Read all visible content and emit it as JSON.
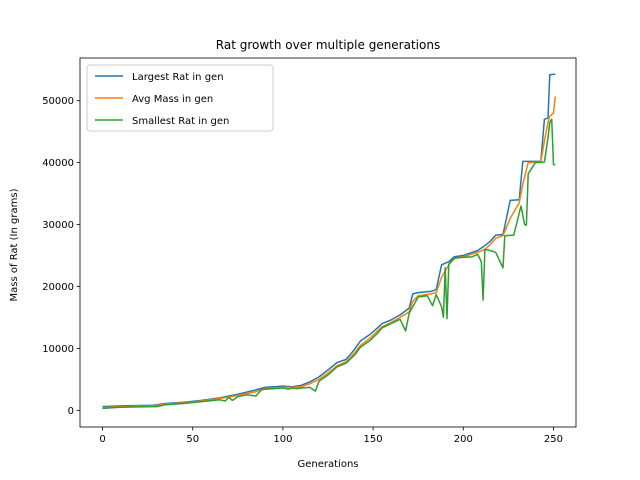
{
  "chart_data": {
    "type": "line",
    "title": "Rat growth over multiple generations",
    "xlabel": "Generations",
    "ylabel": "Mass of Rat (In grams)",
    "xlim": [
      -12.5,
      262.5
    ],
    "ylim": [
      -2700,
      56900
    ],
    "xticks": [
      0,
      50,
      100,
      150,
      200,
      250
    ],
    "yticks": [
      0,
      10000,
      20000,
      30000,
      40000,
      50000
    ],
    "legend_position": "top-left",
    "series": [
      {
        "name": "Largest Rat in gen",
        "color": "#1f77b4",
        "points": [
          [
            0,
            600
          ],
          [
            10,
            700
          ],
          [
            28,
            800
          ],
          [
            35,
            1100
          ],
          [
            45,
            1300
          ],
          [
            55,
            1600
          ],
          [
            65,
            2000
          ],
          [
            75,
            2600
          ],
          [
            85,
            3300
          ],
          [
            90,
            3700
          ],
          [
            100,
            3900
          ],
          [
            105,
            3800
          ],
          [
            110,
            4000
          ],
          [
            115,
            4600
          ],
          [
            120,
            5400
          ],
          [
            125,
            6500
          ],
          [
            130,
            7700
          ],
          [
            135,
            8200
          ],
          [
            138,
            9200
          ],
          [
            140,
            10000
          ],
          [
            143,
            11200
          ],
          [
            148,
            12200
          ],
          [
            152,
            13200
          ],
          [
            155,
            14000
          ],
          [
            160,
            14600
          ],
          [
            165,
            15400
          ],
          [
            170,
            16500
          ],
          [
            172,
            18800
          ],
          [
            175,
            19000
          ],
          [
            182,
            19200
          ],
          [
            185,
            19500
          ],
          [
            188,
            23500
          ],
          [
            192,
            24000
          ],
          [
            195,
            24800
          ],
          [
            200,
            25000
          ],
          [
            208,
            25800
          ],
          [
            212,
            26600
          ],
          [
            215,
            27300
          ],
          [
            218,
            28300
          ],
          [
            222,
            28400
          ],
          [
            226,
            33900
          ],
          [
            231,
            34000
          ],
          [
            233,
            40200
          ],
          [
            243,
            40200
          ],
          [
            245,
            47000
          ],
          [
            247,
            47200
          ],
          [
            248,
            54200
          ],
          [
            251,
            54300
          ]
        ]
      },
      {
        "name": "Avg Mass in gen",
        "color": "#ff7f0e",
        "points": [
          [
            0,
            400
          ],
          [
            10,
            600
          ],
          [
            28,
            700
          ],
          [
            35,
            1000
          ],
          [
            45,
            1200
          ],
          [
            55,
            1500
          ],
          [
            65,
            1900
          ],
          [
            75,
            2400
          ],
          [
            85,
            3000
          ],
          [
            90,
            3500
          ],
          [
            100,
            3700
          ],
          [
            105,
            3700
          ],
          [
            110,
            3800
          ],
          [
            115,
            4300
          ],
          [
            120,
            5000
          ],
          [
            125,
            6000
          ],
          [
            130,
            7200
          ],
          [
            135,
            7800
          ],
          [
            138,
            8700
          ],
          [
            140,
            9400
          ],
          [
            143,
            10500
          ],
          [
            148,
            11600
          ],
          [
            152,
            12700
          ],
          [
            155,
            13500
          ],
          [
            160,
            14200
          ],
          [
            165,
            15000
          ],
          [
            170,
            15900
          ],
          [
            172,
            17600
          ],
          [
            175,
            18500
          ],
          [
            182,
            18800
          ],
          [
            185,
            19000
          ],
          [
            188,
            21500
          ],
          [
            192,
            23500
          ],
          [
            195,
            24500
          ],
          [
            200,
            24800
          ],
          [
            208,
            25500
          ],
          [
            212,
            26000
          ],
          [
            215,
            26800
          ],
          [
            218,
            27800
          ],
          [
            222,
            28200
          ],
          [
            226,
            31000
          ],
          [
            231,
            33500
          ],
          [
            233,
            36500
          ],
          [
            236,
            40000
          ],
          [
            243,
            40100
          ],
          [
            245,
            43500
          ],
          [
            247,
            46500
          ],
          [
            248,
            47500
          ],
          [
            250,
            48000
          ],
          [
            251,
            50700
          ]
        ]
      },
      {
        "name": "Smallest Rat in gen",
        "color": "#2ca02c",
        "points": [
          [
            0,
            300
          ],
          [
            10,
            500
          ],
          [
            28,
            600
          ],
          [
            30,
            600
          ],
          [
            35,
            900
          ],
          [
            45,
            1100
          ],
          [
            55,
            1400
          ],
          [
            65,
            1700
          ],
          [
            68,
            1500
          ],
          [
            70,
            2100
          ],
          [
            72,
            1600
          ],
          [
            75,
            2200
          ],
          [
            80,
            2500
          ],
          [
            85,
            2300
          ],
          [
            88,
            3300
          ],
          [
            90,
            3400
          ],
          [
            100,
            3600
          ],
          [
            103,
            3400
          ],
          [
            105,
            3600
          ],
          [
            108,
            3500
          ],
          [
            110,
            3600
          ],
          [
            115,
            3700
          ],
          [
            118,
            3100
          ],
          [
            120,
            4700
          ],
          [
            125,
            5700
          ],
          [
            130,
            7000
          ],
          [
            135,
            7600
          ],
          [
            140,
            9000
          ],
          [
            143,
            10200
          ],
          [
            148,
            11200
          ],
          [
            152,
            12300
          ],
          [
            155,
            13300
          ],
          [
            160,
            14000
          ],
          [
            165,
            14700
          ],
          [
            168,
            12800
          ],
          [
            170,
            15700
          ],
          [
            175,
            18300
          ],
          [
            180,
            18500
          ],
          [
            183,
            16900
          ],
          [
            185,
            18700
          ],
          [
            188,
            16700
          ],
          [
            189,
            15000
          ],
          [
            190,
            23000
          ],
          [
            191,
            14800
          ],
          [
            192,
            23600
          ],
          [
            195,
            24600
          ],
          [
            205,
            24800
          ],
          [
            208,
            25200
          ],
          [
            210,
            24000
          ],
          [
            211,
            17800
          ],
          [
            212,
            26000
          ],
          [
            215,
            25800
          ],
          [
            218,
            25500
          ],
          [
            222,
            23000
          ],
          [
            223,
            28200
          ],
          [
            228,
            28300
          ],
          [
            232,
            33000
          ],
          [
            234,
            30000
          ],
          [
            235,
            29900
          ],
          [
            236,
            38200
          ],
          [
            240,
            40000
          ],
          [
            245,
            40100
          ],
          [
            247,
            44000
          ],
          [
            248,
            46500
          ],
          [
            249,
            47000
          ],
          [
            250,
            39700
          ],
          [
            251,
            39600
          ]
        ]
      }
    ]
  }
}
